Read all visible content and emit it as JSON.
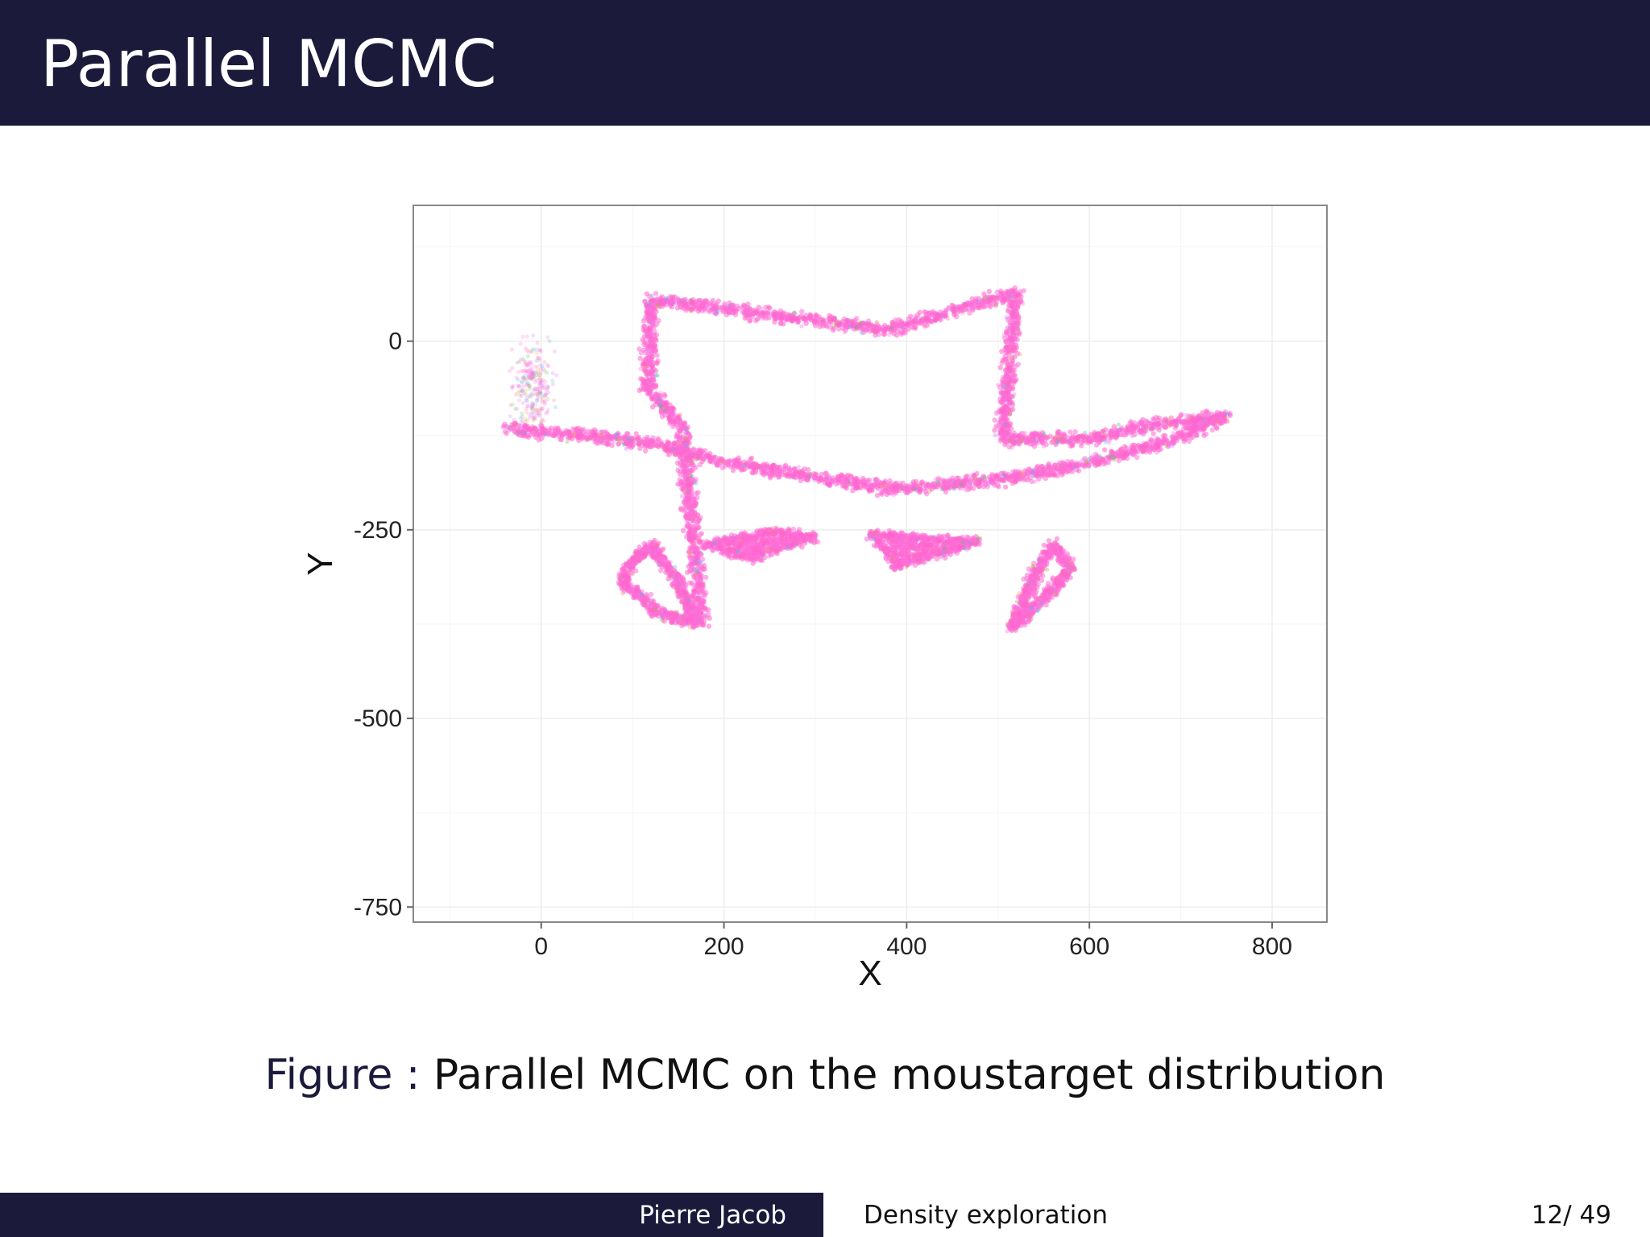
{
  "slide": {
    "title": "Parallel MCMC"
  },
  "caption": {
    "label": "Figure :",
    "text": "Parallel MCMC on the moustarget distribution"
  },
  "footer": {
    "author": "Pierre Jacob",
    "short_title": "Density exploration",
    "page": "12/ 49"
  },
  "colors": {
    "header_bg": "#1b1a3a",
    "point_colors": [
      "#ff6fd8",
      "#ff66cc",
      "#d96bff",
      "#33c0e0",
      "#42b4ff",
      "#3cc873",
      "#9fb832",
      "#f27a64",
      "#e5b13a"
    ]
  },
  "chart_data": {
    "type": "scatter",
    "xlabel": "X",
    "ylabel": "Y",
    "xlim": [
      -140,
      860
    ],
    "ylim": [
      -770,
      180
    ],
    "xticks": [
      0,
      200,
      400,
      600,
      800
    ],
    "yticks": [
      0,
      -250,
      -500,
      -750
    ],
    "grid": true,
    "legend": "none",
    "description_shape": "moustarget",
    "shapes": [
      {
        "name": "hat-crown",
        "kind": "polyline",
        "points": [
          [
            175,
            -372
          ],
          [
            155,
            -115
          ],
          [
            118,
            -65
          ],
          [
            120,
            55
          ],
          [
            380,
            15
          ],
          [
            520,
            65
          ],
          [
            505,
            -130
          ],
          [
            600,
            -130
          ]
        ]
      },
      {
        "name": "hat-brim",
        "kind": "polyline",
        "points": [
          [
            -35,
            -115
          ],
          [
            120,
            -135
          ],
          [
            200,
            -160
          ],
          [
            300,
            -180
          ],
          [
            380,
            -195
          ],
          [
            450,
            -190
          ],
          [
            520,
            -180
          ],
          [
            600,
            -160
          ],
          [
            680,
            -135
          ],
          [
            750,
            -100
          ]
        ]
      },
      {
        "name": "brim-right-inner",
        "kind": "polyline",
        "points": [
          [
            600,
            -130
          ],
          [
            670,
            -110
          ],
          [
            750,
            -100
          ]
        ]
      },
      {
        "name": "plume",
        "kind": "cluster",
        "center": [
          -10,
          -60
        ],
        "spread": [
          15,
          40
        ]
      },
      {
        "name": "left-eye",
        "kind": "loop",
        "points": [
          [
            95,
            -300
          ],
          [
            120,
            -270
          ],
          [
            150,
            -320
          ],
          [
            170,
            -375
          ],
          [
            130,
            -360
          ],
          [
            90,
            -320
          ]
        ]
      },
      {
        "name": "left-moustache",
        "kind": "polygon",
        "points": [
          [
            180,
            -270
          ],
          [
            250,
            -250
          ],
          [
            300,
            -260
          ],
          [
            230,
            -290
          ]
        ]
      },
      {
        "name": "right-moustache",
        "kind": "polygon",
        "points": [
          [
            360,
            -255
          ],
          [
            480,
            -265
          ],
          [
            390,
            -300
          ]
        ]
      },
      {
        "name": "right-eye",
        "kind": "loop",
        "points": [
          [
            560,
            -270
          ],
          [
            580,
            -300
          ],
          [
            555,
            -335
          ],
          [
            515,
            -380
          ],
          [
            540,
            -310
          ]
        ]
      }
    ]
  }
}
